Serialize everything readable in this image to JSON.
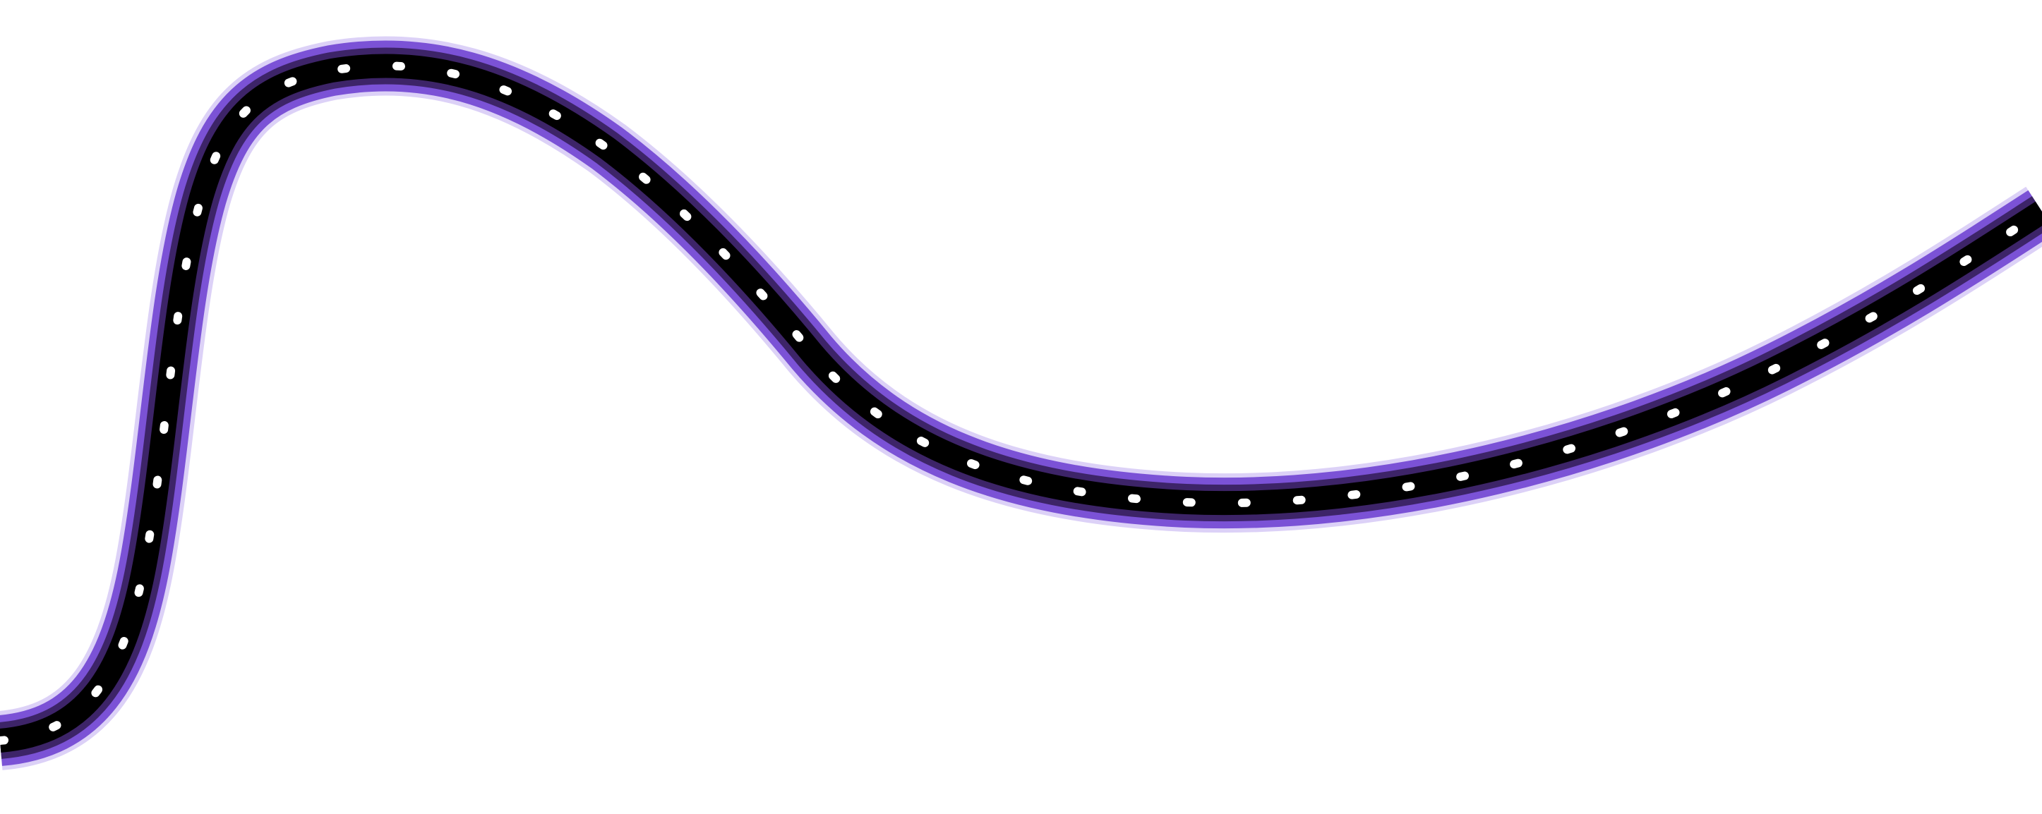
{
  "scene": {
    "background_color": "#ffffff",
    "road": {
      "name": "winding-road",
      "edge_color": "#7b52d6",
      "glow_color": "#9b7ae8",
      "core_color": "#000000",
      "dash_color": "#ffffff",
      "dash_style": "dashed-center-line"
    }
  }
}
